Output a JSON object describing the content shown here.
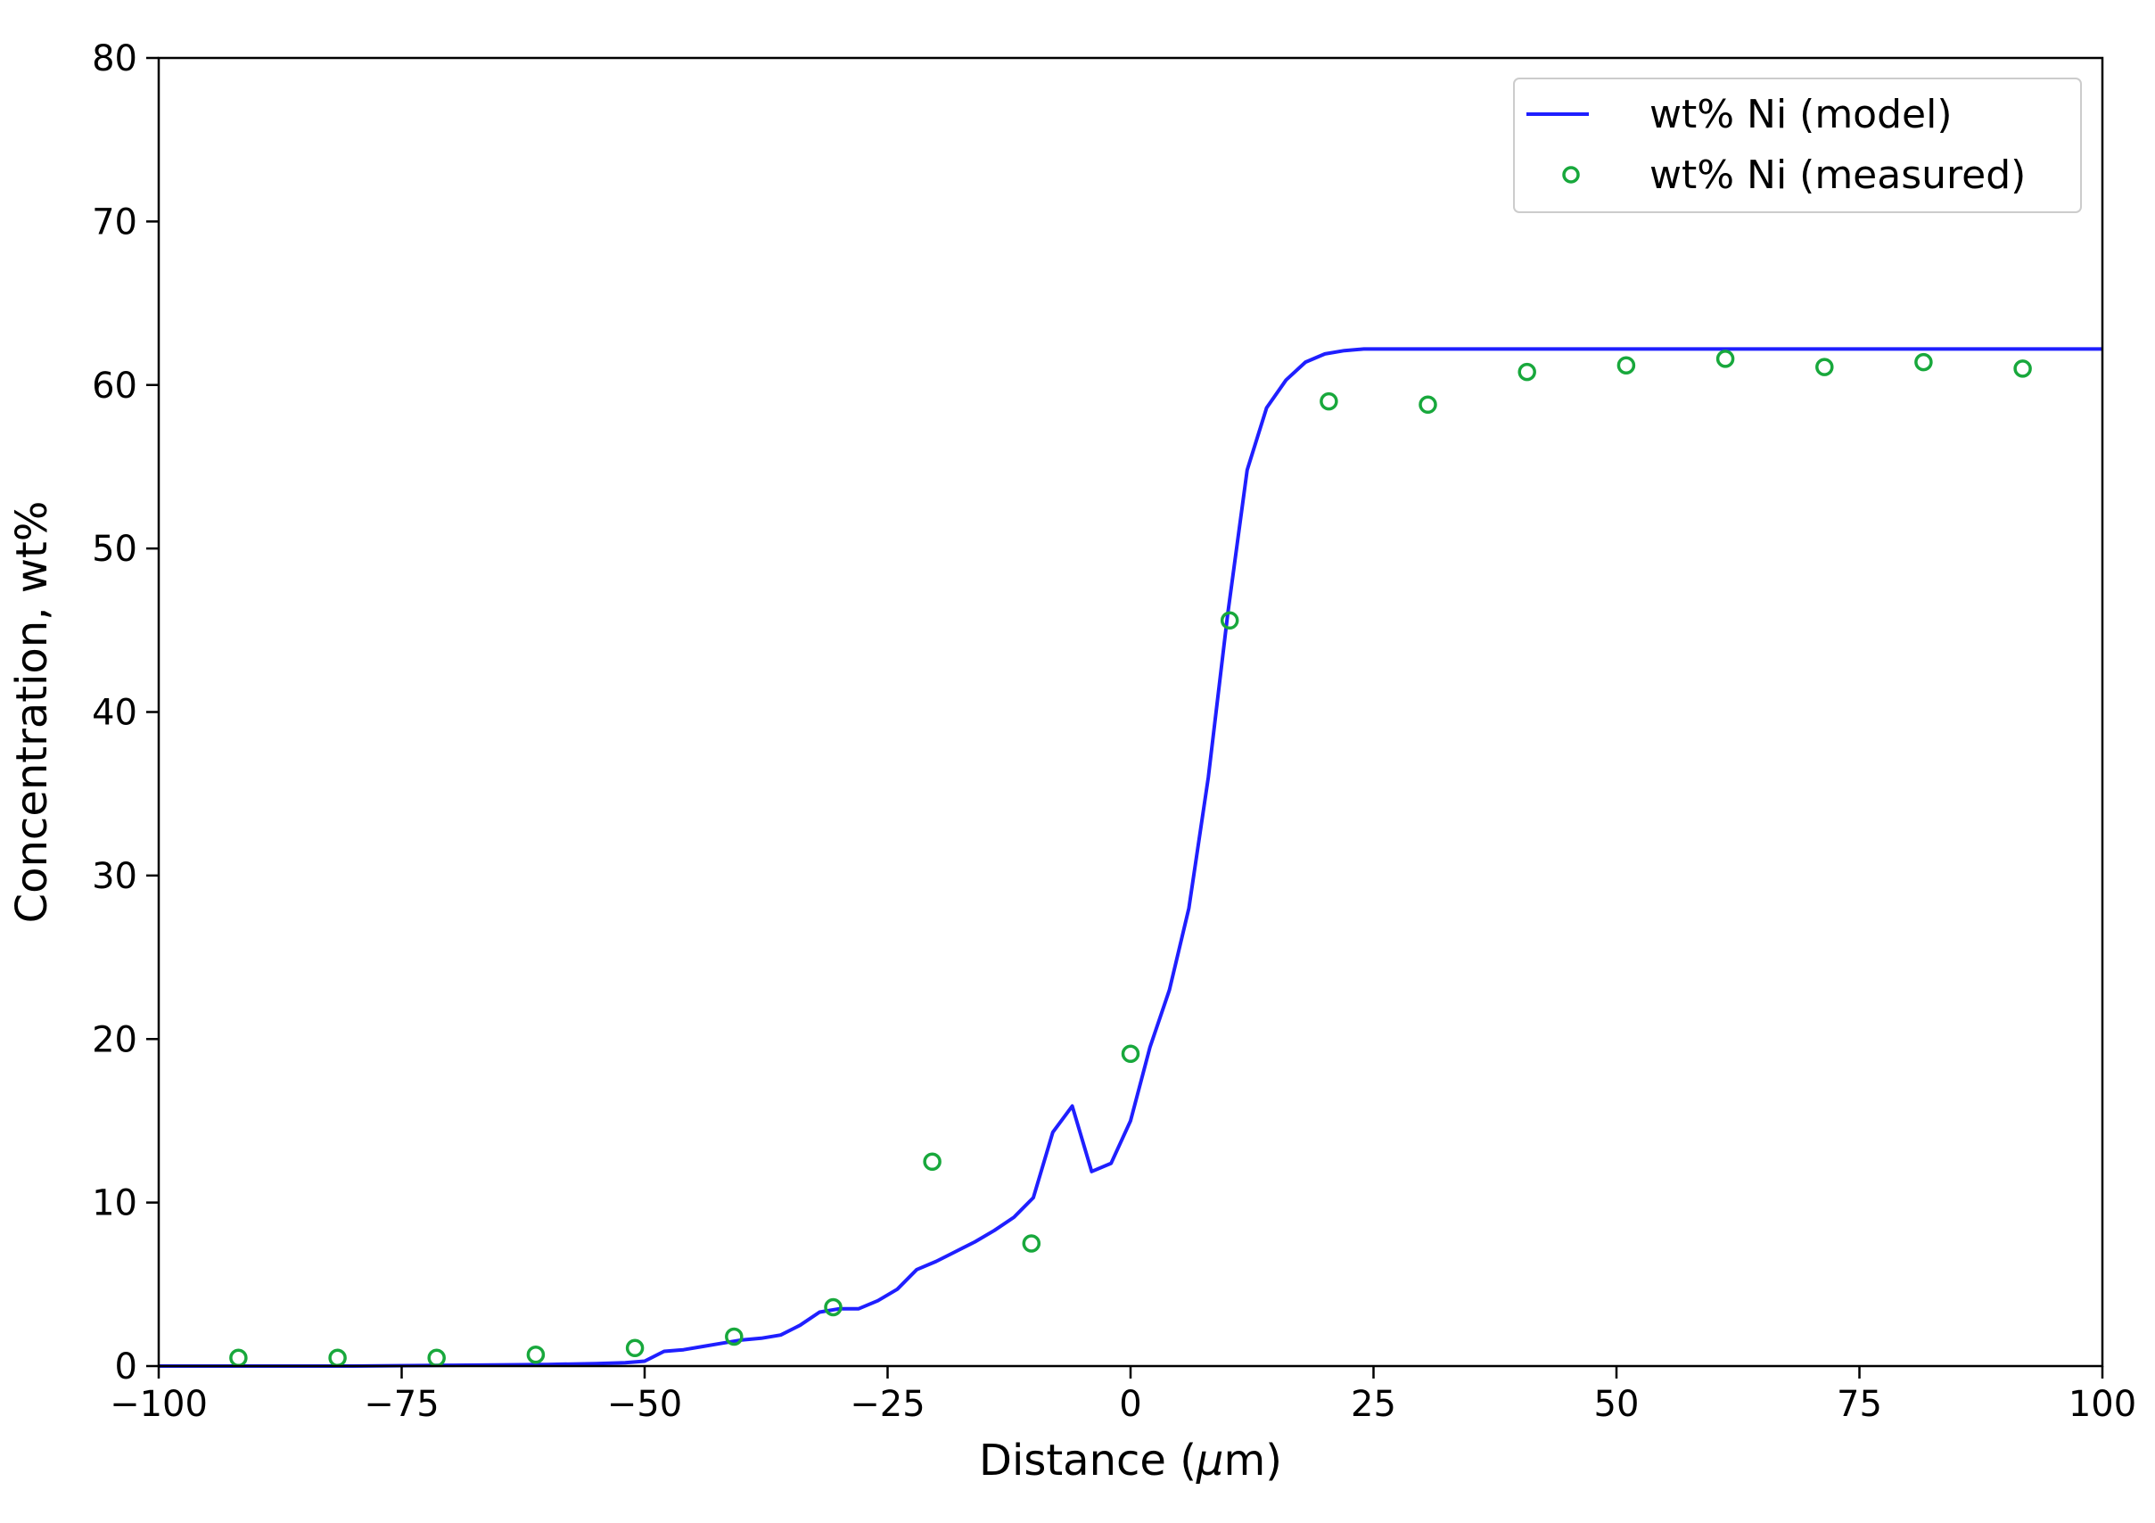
{
  "chart_data": {
    "type": "line",
    "title": "",
    "xlabel_prefix": "Distance (",
    "xlabel_mu": "μ",
    "xlabel_suffix": "m)",
    "ylabel": "Concentration, wt%",
    "xlim": [
      -100,
      100
    ],
    "ylim": [
      0,
      80
    ],
    "xticks": [
      -100,
      -75,
      -50,
      -25,
      0,
      25,
      50,
      75,
      100
    ],
    "xtick_labels": [
      "−100",
      "−75",
      "−50",
      "−25",
      "0",
      "25",
      "50",
      "75",
      "100"
    ],
    "yticks": [
      0,
      10,
      20,
      30,
      40,
      50,
      60,
      70,
      80
    ],
    "ytick_labels": [
      "0",
      "10",
      "20",
      "30",
      "40",
      "50",
      "60",
      "70",
      "80"
    ],
    "grid": false,
    "legend_position": "top-right",
    "series": [
      {
        "name": "wt% Ni (model)",
        "kind": "line",
        "color": "#1f1fff",
        "x": [
          -100,
          -90,
          -80,
          -70,
          -60,
          -55,
          -52,
          -50,
          -48,
          -46,
          -44,
          -42,
          -40,
          -38,
          -36,
          -34,
          -32,
          -30,
          -28,
          -26,
          -24,
          -22,
          -20,
          -18,
          -16,
          -14,
          -12,
          -10,
          -8,
          -6,
          -4,
          -2,
          0,
          2,
          4,
          6,
          8,
          10,
          12,
          14,
          16,
          18,
          20,
          22,
          24,
          26,
          30,
          40,
          50,
          60,
          70,
          80,
          90,
          100
        ],
        "y": [
          0,
          0,
          0,
          0.05,
          0.1,
          0.15,
          0.2,
          0.3,
          0.9,
          1.0,
          1.2,
          1.4,
          1.6,
          1.7,
          1.9,
          2.5,
          3.3,
          3.5,
          3.5,
          4.0,
          4.7,
          5.9,
          6.4,
          7.0,
          7.6,
          8.3,
          9.1,
          10.3,
          14.3,
          15.9,
          11.9,
          12.4,
          15.0,
          19.5,
          23.0,
          28.0,
          36.0,
          46.0,
          54.8,
          58.6,
          60.3,
          61.4,
          61.9,
          62.1,
          62.2,
          62.2,
          62.2,
          62.2,
          62.2,
          62.2,
          62.2,
          62.2,
          62.2,
          62.2
        ]
      },
      {
        "name": "wt% Ni (measured)",
        "kind": "scatter",
        "color": "#18a83c",
        "x": [
          -91.8,
          -81.6,
          -71.4,
          -61.2,
          -51.0,
          -40.8,
          -30.6,
          -20.4,
          -10.2,
          0,
          10.2,
          20.4,
          30.6,
          40.8,
          51.0,
          61.2,
          71.4,
          81.6,
          91.8
        ],
        "y": [
          0.5,
          0.5,
          0.5,
          0.7,
          1.1,
          1.8,
          3.6,
          12.5,
          7.5,
          19.1,
          45.6,
          59.0,
          58.8,
          60.8,
          61.2,
          61.6,
          61.1,
          61.4,
          61.0
        ]
      }
    ]
  }
}
